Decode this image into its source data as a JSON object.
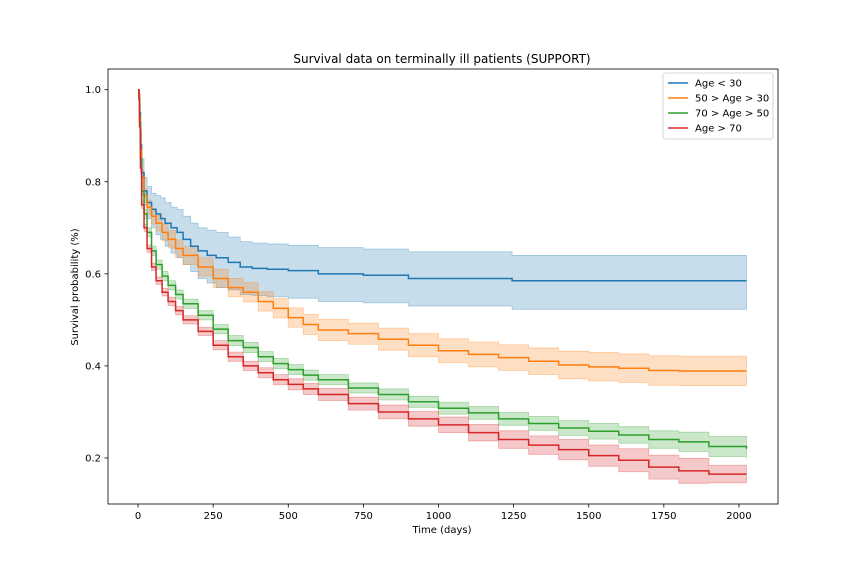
{
  "chart_data": {
    "type": "line",
    "title": "Survival data on terminally ill patients (SUPPORT)",
    "xlabel": "Time (days)",
    "ylabel": "Survival probability (%)",
    "xlim": [
      -100,
      2130
    ],
    "ylim": [
      0.1,
      1.045
    ],
    "xticks": [
      0,
      250,
      500,
      750,
      1000,
      1250,
      1500,
      1750,
      2000
    ],
    "yticks": [
      0.2,
      0.4,
      0.6,
      0.8,
      1.0
    ],
    "xtick_labels": [
      "0",
      "250",
      "500",
      "750",
      "1000",
      "1250",
      "1500",
      "1750",
      "2000"
    ],
    "ytick_labels": [
      "0.2",
      "0.4",
      "0.6",
      "0.8",
      "1.0"
    ],
    "grid": false,
    "legend_position": "top-right",
    "series": [
      {
        "name": "Age < 30",
        "color": "#1f77b4",
        "x": [
          0,
          3,
          5,
          8,
          12,
          20,
          30,
          45,
          60,
          75,
          90,
          110,
          130,
          150,
          175,
          200,
          230,
          260,
          300,
          340,
          380,
          430,
          500,
          600,
          750,
          900,
          1000,
          1100,
          1240,
          1245,
          1400,
          1600,
          1800,
          2025
        ],
        "y": [
          1.0,
          0.99,
          0.95,
          0.88,
          0.82,
          0.78,
          0.755,
          0.74,
          0.73,
          0.72,
          0.71,
          0.7,
          0.69,
          0.675,
          0.66,
          0.65,
          0.64,
          0.635,
          0.625,
          0.615,
          0.612,
          0.61,
          0.607,
          0.6,
          0.597,
          0.59,
          0.59,
          0.59,
          0.59,
          0.585,
          0.585,
          0.585,
          0.585,
          0.585
        ],
        "ci_lower": [
          1.0,
          0.985,
          0.93,
          0.85,
          0.79,
          0.75,
          0.72,
          0.7,
          0.685,
          0.675,
          0.66,
          0.645,
          0.635,
          0.62,
          0.605,
          0.59,
          0.58,
          0.57,
          0.565,
          0.555,
          0.553,
          0.55,
          0.547,
          0.54,
          0.537,
          0.53,
          0.53,
          0.53,
          0.53,
          0.523,
          0.523,
          0.523,
          0.523,
          0.523
        ],
        "ci_upper": [
          1.0,
          0.995,
          0.965,
          0.91,
          0.85,
          0.81,
          0.79,
          0.775,
          0.77,
          0.765,
          0.755,
          0.745,
          0.74,
          0.725,
          0.71,
          0.7,
          0.695,
          0.69,
          0.68,
          0.67,
          0.667,
          0.665,
          0.662,
          0.657,
          0.654,
          0.648,
          0.648,
          0.648,
          0.648,
          0.64,
          0.64,
          0.64,
          0.64,
          0.64
        ]
      },
      {
        "name": "50 > Age > 30",
        "color": "#ff7f0e",
        "x": [
          0,
          3,
          5,
          8,
          12,
          20,
          30,
          45,
          60,
          80,
          100,
          125,
          150,
          200,
          250,
          300,
          350,
          400,
          450,
          500,
          550,
          600,
          700,
          800,
          900,
          1000,
          1100,
          1200,
          1300,
          1400,
          1500,
          1600,
          1700,
          1800,
          1900,
          2025
        ],
        "y": [
          1.0,
          0.99,
          0.94,
          0.87,
          0.81,
          0.77,
          0.745,
          0.725,
          0.71,
          0.69,
          0.675,
          0.655,
          0.64,
          0.615,
          0.59,
          0.57,
          0.56,
          0.54,
          0.525,
          0.505,
          0.49,
          0.478,
          0.47,
          0.458,
          0.445,
          0.433,
          0.425,
          0.418,
          0.41,
          0.402,
          0.398,
          0.395,
          0.39,
          0.389,
          0.389,
          0.389
        ],
        "ci_lower": [
          1.0,
          0.985,
          0.93,
          0.855,
          0.795,
          0.755,
          0.73,
          0.708,
          0.693,
          0.672,
          0.656,
          0.636,
          0.62,
          0.595,
          0.57,
          0.55,
          0.539,
          0.519,
          0.504,
          0.484,
          0.468,
          0.455,
          0.447,
          0.434,
          0.42,
          0.407,
          0.398,
          0.39,
          0.381,
          0.372,
          0.367,
          0.364,
          0.358,
          0.357,
          0.357,
          0.357
        ],
        "ci_upper": [
          1.0,
          0.995,
          0.95,
          0.885,
          0.825,
          0.785,
          0.76,
          0.742,
          0.727,
          0.708,
          0.694,
          0.674,
          0.66,
          0.635,
          0.61,
          0.59,
          0.581,
          0.561,
          0.546,
          0.526,
          0.512,
          0.501,
          0.493,
          0.482,
          0.47,
          0.459,
          0.452,
          0.446,
          0.439,
          0.432,
          0.429,
          0.426,
          0.422,
          0.421,
          0.421,
          0.421
        ]
      },
      {
        "name": "70 > Age > 50",
        "color": "#2ca02c",
        "x": [
          0,
          3,
          5,
          8,
          12,
          20,
          30,
          45,
          60,
          80,
          100,
          125,
          150,
          200,
          250,
          300,
          350,
          400,
          450,
          500,
          550,
          600,
          700,
          800,
          900,
          1000,
          1100,
          1200,
          1300,
          1400,
          1500,
          1600,
          1700,
          1800,
          1900,
          2025
        ],
        "y": [
          1.0,
          0.98,
          0.93,
          0.85,
          0.78,
          0.73,
          0.69,
          0.65,
          0.62,
          0.595,
          0.575,
          0.555,
          0.535,
          0.51,
          0.48,
          0.455,
          0.44,
          0.42,
          0.405,
          0.392,
          0.38,
          0.37,
          0.352,
          0.338,
          0.322,
          0.308,
          0.298,
          0.285,
          0.275,
          0.265,
          0.258,
          0.25,
          0.24,
          0.235,
          0.225,
          0.22
        ],
        "ci_lower": [
          1.0,
          0.975,
          0.92,
          0.84,
          0.77,
          0.72,
          0.68,
          0.64,
          0.61,
          0.585,
          0.565,
          0.545,
          0.525,
          0.5,
          0.47,
          0.444,
          0.429,
          0.409,
          0.394,
          0.381,
          0.369,
          0.359,
          0.341,
          0.326,
          0.31,
          0.295,
          0.284,
          0.271,
          0.26,
          0.249,
          0.241,
          0.232,
          0.221,
          0.214,
          0.203,
          0.198
        ],
        "ci_upper": [
          1.0,
          0.985,
          0.94,
          0.86,
          0.79,
          0.74,
          0.7,
          0.66,
          0.63,
          0.605,
          0.585,
          0.565,
          0.545,
          0.52,
          0.49,
          0.466,
          0.451,
          0.431,
          0.416,
          0.403,
          0.391,
          0.381,
          0.363,
          0.35,
          0.334,
          0.321,
          0.312,
          0.299,
          0.29,
          0.281,
          0.275,
          0.268,
          0.259,
          0.256,
          0.247,
          0.242
        ]
      },
      {
        "name": "Age > 70",
        "color": "#d62728",
        "x": [
          0,
          3,
          5,
          8,
          12,
          20,
          30,
          45,
          60,
          80,
          100,
          125,
          150,
          200,
          250,
          300,
          350,
          400,
          450,
          500,
          550,
          600,
          700,
          800,
          900,
          1000,
          1100,
          1200,
          1300,
          1400,
          1500,
          1600,
          1700,
          1800,
          1900,
          2025
        ],
        "y": [
          1.0,
          0.98,
          0.92,
          0.83,
          0.75,
          0.7,
          0.655,
          0.615,
          0.585,
          0.56,
          0.54,
          0.52,
          0.5,
          0.475,
          0.445,
          0.42,
          0.4,
          0.385,
          0.37,
          0.36,
          0.35,
          0.338,
          0.318,
          0.3,
          0.285,
          0.272,
          0.255,
          0.24,
          0.228,
          0.218,
          0.205,
          0.195,
          0.18,
          0.172,
          0.165,
          0.165
        ],
        "ci_lower": [
          1.0,
          0.975,
          0.912,
          0.822,
          0.742,
          0.692,
          0.647,
          0.607,
          0.577,
          0.552,
          0.531,
          0.511,
          0.491,
          0.466,
          0.435,
          0.41,
          0.39,
          0.374,
          0.359,
          0.348,
          0.338,
          0.325,
          0.304,
          0.285,
          0.269,
          0.255,
          0.237,
          0.221,
          0.208,
          0.196,
          0.182,
          0.17,
          0.154,
          0.145,
          0.146,
          0.146
        ],
        "ci_upper": [
          1.0,
          0.985,
          0.928,
          0.838,
          0.758,
          0.708,
          0.663,
          0.623,
          0.593,
          0.568,
          0.549,
          0.529,
          0.509,
          0.484,
          0.455,
          0.43,
          0.41,
          0.396,
          0.381,
          0.372,
          0.362,
          0.351,
          0.332,
          0.315,
          0.301,
          0.289,
          0.273,
          0.259,
          0.248,
          0.24,
          0.228,
          0.22,
          0.206,
          0.199,
          0.184,
          0.184
        ]
      }
    ]
  }
}
